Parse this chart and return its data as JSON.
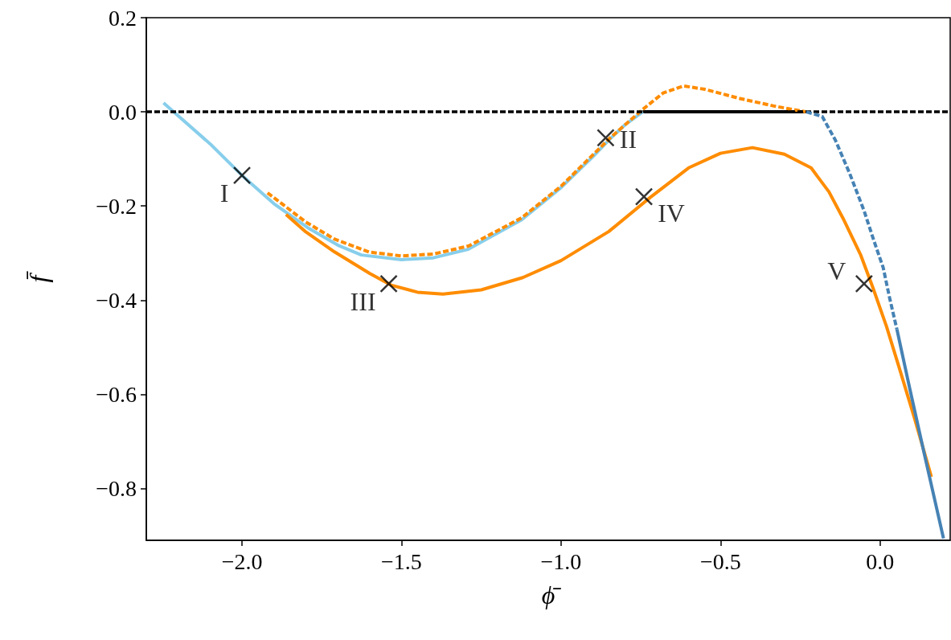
{
  "chart_data": {
    "type": "line",
    "xlabel": "ϕ̄",
    "ylabel": "f̄",
    "xlim": [
      -2.3,
      0.22
    ],
    "ylim": [
      -0.91,
      0.2
    ],
    "xticks": [
      {
        "value": -2.0,
        "label": "−2.0"
      },
      {
        "value": -1.5,
        "label": "−1.5"
      },
      {
        "value": -1.0,
        "label": "−1.0"
      },
      {
        "value": -0.5,
        "label": "−0.5"
      },
      {
        "value": 0.0,
        "label": "0.0"
      }
    ],
    "yticks": [
      {
        "value": -0.8,
        "label": "−0.8"
      },
      {
        "value": -0.6,
        "label": "−0.6"
      },
      {
        "value": -0.4,
        "label": "−0.4"
      },
      {
        "value": -0.2,
        "label": "−0.2"
      },
      {
        "value": 0.0,
        "label": "0.0"
      },
      {
        "value": 0.2,
        "label": "0.2"
      }
    ],
    "grid": false,
    "ref_lines": [
      {
        "axis": "y",
        "value": 0.0,
        "color": "#000000",
        "line_style": "dashed"
      }
    ],
    "series": [
      {
        "color": "#000000",
        "line_style": "solid",
        "marker": "none",
        "x": [
          -0.744,
          -0.231
        ],
        "values": [
          0.0,
          0.0
        ]
      },
      {
        "color": "#87ceeb",
        "line_style": "solid",
        "marker": "none",
        "x": [
          -2.246,
          -2.1,
          -2.0,
          -1.9,
          -1.794,
          -1.7,
          -1.626,
          -1.5,
          -1.4,
          -1.291,
          -1.123,
          -1.0,
          -0.9,
          -0.844,
          -0.8,
          -0.744
        ],
        "values": [
          0.019,
          -0.068,
          -0.135,
          -0.195,
          -0.246,
          -0.283,
          -0.304,
          -0.314,
          -0.31,
          -0.292,
          -0.229,
          -0.161,
          -0.095,
          -0.056,
          -0.028,
          0.0
        ]
      },
      {
        "color": "#ff8c00",
        "line_style": "dashed",
        "marker": "none",
        "x": [
          -1.92,
          -1.8,
          -1.711,
          -1.6,
          -1.5,
          -1.4,
          -1.29,
          -1.123,
          -1.0,
          -0.844,
          -0.744,
          -0.68,
          -0.616,
          -0.55,
          -0.437,
          -0.33,
          -0.231
        ],
        "values": [
          -0.172,
          -0.234,
          -0.27,
          -0.298,
          -0.306,
          -0.302,
          -0.285,
          -0.225,
          -0.158,
          -0.054,
          0.005,
          0.04,
          0.055,
          0.048,
          0.028,
          0.012,
          0.0
        ]
      },
      {
        "color": "#ff8c00",
        "line_style": "solid",
        "marker": "none",
        "x": [
          -1.862,
          -1.8,
          -1.711,
          -1.6,
          -1.533,
          -1.45,
          -1.37,
          -1.25,
          -1.12,
          -1.0,
          -0.85,
          -0.719,
          -0.6,
          -0.5,
          -0.4,
          -0.3,
          -0.216,
          -0.16,
          -0.113,
          -0.06,
          -0.023,
          0.02,
          0.06,
          0.11,
          0.161
        ],
        "values": [
          -0.218,
          -0.255,
          -0.297,
          -0.343,
          -0.368,
          -0.383,
          -0.387,
          -0.378,
          -0.352,
          -0.316,
          -0.254,
          -0.181,
          -0.119,
          -0.088,
          -0.076,
          -0.09,
          -0.119,
          -0.17,
          -0.23,
          -0.305,
          -0.372,
          -0.455,
          -0.543,
          -0.655,
          -0.775
        ]
      },
      {
        "color": "#4682b4",
        "line_style": "dashed",
        "marker": "none",
        "x": [
          -0.231,
          -0.181,
          -0.14,
          -0.095,
          -0.05,
          -0.018,
          0.01,
          0.03,
          0.053
        ],
        "values": [
          0.0,
          -0.01,
          -0.06,
          -0.131,
          -0.21,
          -0.276,
          -0.331,
          -0.395,
          -0.462
        ]
      },
      {
        "color": "#4682b4",
        "line_style": "solid",
        "marker": "none",
        "x": [
          0.053,
          0.093,
          0.14,
          0.199
        ],
        "values": [
          -0.462,
          -0.587,
          -0.73,
          -0.906
        ]
      },
      {
        "type": "scatter",
        "color": "#000000",
        "marker": "cross",
        "x": [
          -2.0,
          -0.86,
          -1.54,
          -0.74,
          -0.05
        ],
        "values": [
          -0.135,
          -0.055,
          -0.365,
          -0.18,
          -0.365
        ],
        "value_labels": [
          "I",
          "II",
          "III",
          "IV",
          "V"
        ]
      }
    ]
  }
}
